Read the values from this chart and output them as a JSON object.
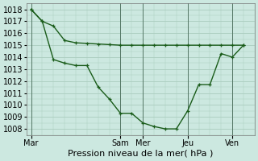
{
  "xlabel": "Pression niveau de la mer( hPa )",
  "background_color": "#cce8e0",
  "plot_bg_color": "#cce8e0",
  "grid_color": "#aaccbe",
  "line_color": "#1a5c1a",
  "ylim": [
    1007.5,
    1018.5
  ],
  "yticks": [
    1008,
    1009,
    1010,
    1011,
    1012,
    1013,
    1014,
    1015,
    1016,
    1017,
    1018
  ],
  "day_labels": [
    "Mar",
    "Sam",
    "Mer",
    "Jeu",
    "Ven"
  ],
  "day_x": [
    0,
    4.0,
    5.0,
    7.0,
    9.0
  ],
  "xlim": [
    -0.2,
    10.0
  ],
  "series1_x": [
    0,
    0.5,
    1.0,
    1.5,
    2.0,
    2.5,
    3.0,
    3.5,
    4.0,
    4.5,
    5.0,
    5.5,
    6.0,
    6.5,
    7.0,
    7.5,
    8.0,
    8.5,
    9.0,
    9.5
  ],
  "series1_y": [
    1018,
    1017,
    1016.6,
    1015.4,
    1015.2,
    1015.15,
    1015.1,
    1015.05,
    1015.0,
    1015.0,
    1015.0,
    1015.0,
    1015.0,
    1015.0,
    1015.0,
    1015.0,
    1015.0,
    1015.0,
    1015.0,
    1015.0
  ],
  "series2_x": [
    0,
    0.5,
    1.0,
    1.5,
    2.0,
    2.5,
    3.0,
    3.5,
    4.0,
    4.5,
    5.0,
    5.5,
    6.0,
    6.5,
    7.0,
    7.5,
    8.0,
    8.5,
    9.0,
    9.5
  ],
  "series2_y": [
    1018,
    1017,
    1013.8,
    1013.5,
    1013.3,
    1013.3,
    1011.5,
    1010.5,
    1009.3,
    1009.3,
    1008.5,
    1008.2,
    1008.0,
    1008.0,
    1009.5,
    1011.7,
    1011.7,
    1014.3,
    1014.0,
    1015.0
  ],
  "marker_size": 3.5,
  "linewidth": 1.0,
  "font_size_axis": 8,
  "font_size_tick": 7
}
